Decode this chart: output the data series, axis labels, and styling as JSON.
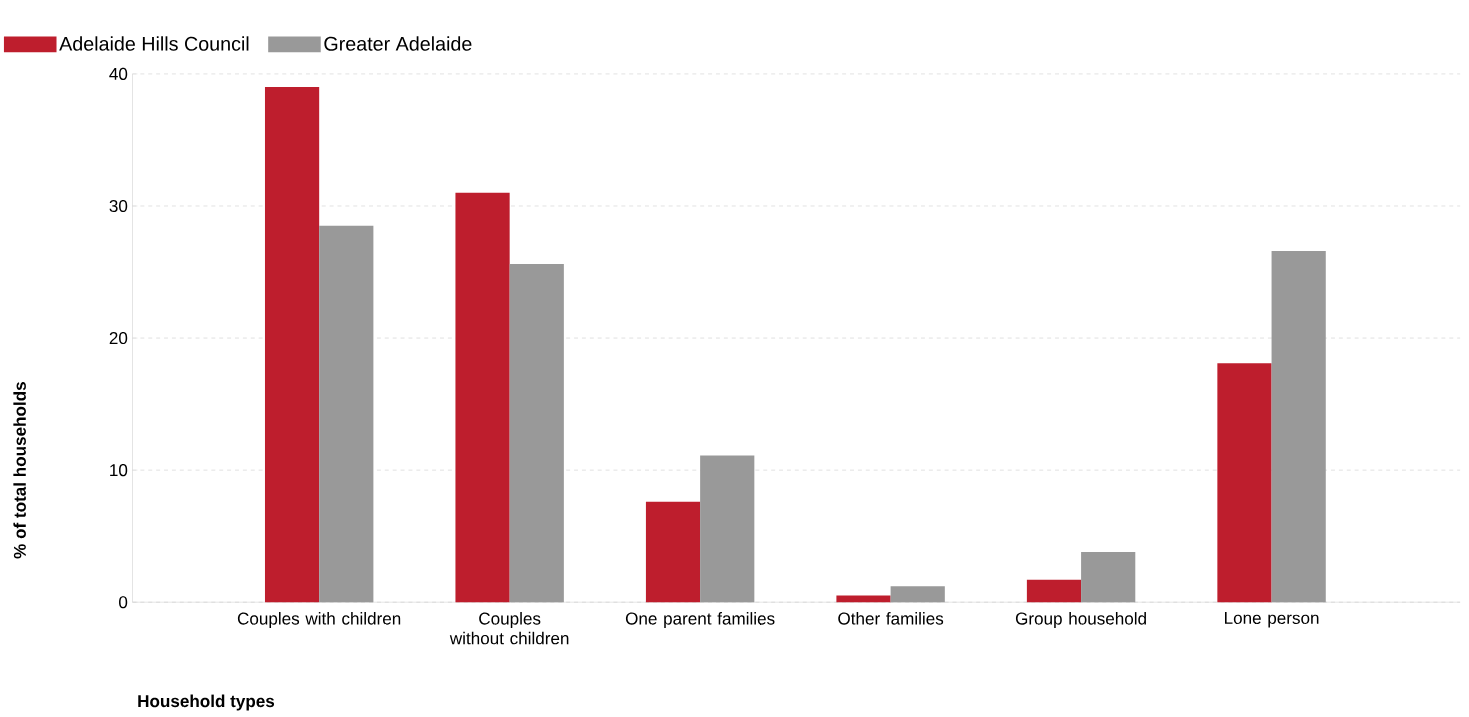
{
  "chart_data": {
    "type": "bar",
    "categories": [
      "Couples with children",
      "Couples without children",
      "One parent families",
      "Other families",
      "Group household",
      "Lone person"
    ],
    "series": [
      {
        "name": "Adelaide Hills Council",
        "color": "#be1e2d",
        "values": [
          39.0,
          31.0,
          7.6,
          0.5,
          1.7,
          18.1
        ]
      },
      {
        "name": "Greater Adelaide",
        "color": "#999999",
        "values": [
          28.5,
          25.6,
          11.1,
          1.2,
          3.8,
          26.6
        ]
      }
    ],
    "xlabel": "Household types",
    "ylabel": "% of total households",
    "ylim": [
      0,
      40
    ],
    "yticks": [
      0,
      10,
      20,
      30,
      40
    ],
    "grid": "y",
    "legend": "top left"
  }
}
